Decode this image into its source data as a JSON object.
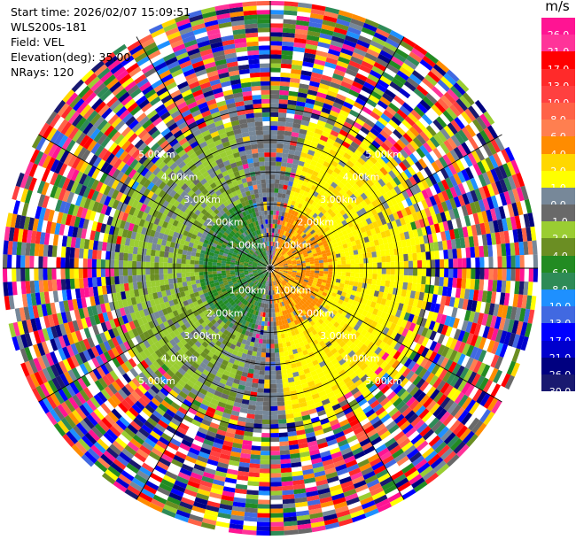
{
  "header": {
    "start_time": "Start time: 2026/02/07 15:09:51",
    "instrument": "WLS200s-181",
    "field": "Field: VEL",
    "elevation": "Elevation(deg): 35.00",
    "nrays": "NRays: 120"
  },
  "colorbar": {
    "unit": "m/s",
    "segments": [
      {
        "color": "#ff1493",
        "label": "26.0"
      },
      {
        "color": "#ff3399",
        "label": "21.0"
      },
      {
        "color": "#ff0000",
        "label": "17.0"
      },
      {
        "color": "#ff2a2a",
        "label": "13.0"
      },
      {
        "color": "#ff4040",
        "label": "10.0"
      },
      {
        "color": "#ff6347",
        "label": "8.0"
      },
      {
        "color": "#ff7f50",
        "label": "6.0"
      },
      {
        "color": "#ff8c00",
        "label": "4.0"
      },
      {
        "color": "#ffd700",
        "label": "2.0"
      },
      {
        "color": "#ffff00",
        "label": "1.0"
      },
      {
        "color": "#778899",
        "label": "0.0"
      },
      {
        "color": "#696969",
        "label": "-1.0"
      },
      {
        "color": "#9acd32",
        "label": "-2.0"
      },
      {
        "color": "#6b8e23",
        "label": "-4.0"
      },
      {
        "color": "#228b22",
        "label": "-6.0"
      },
      {
        "color": "#2e8b57",
        "label": "-8.0"
      },
      {
        "color": "#1e90ff",
        "label": "-10.0"
      },
      {
        "color": "#4169e1",
        "label": "-13.0"
      },
      {
        "color": "#0000ff",
        "label": "-17.0"
      },
      {
        "color": "#0000cd",
        "label": "-21.0"
      },
      {
        "color": "#000080",
        "label": "-26.0"
      },
      {
        "color": "#191970",
        "label": "-30.0"
      }
    ]
  },
  "chart_data": {
    "type": "heatmap",
    "title": "",
    "field": "VEL",
    "units": "m/s",
    "range_rings_km": [
      1.0,
      2.0,
      3.0,
      4.0,
      5.0
    ],
    "range_labels": [
      "1.00km",
      "2.00km",
      "3.00km",
      "4.00km",
      "5.00km"
    ],
    "max_range_km": 5.0,
    "nrays": 120,
    "elevation_deg": 35.0,
    "pattern": "near-range: approaching (green) on west side, receding (yellow/orange) on east side; beyond ~3 km noisy random velocities"
  }
}
